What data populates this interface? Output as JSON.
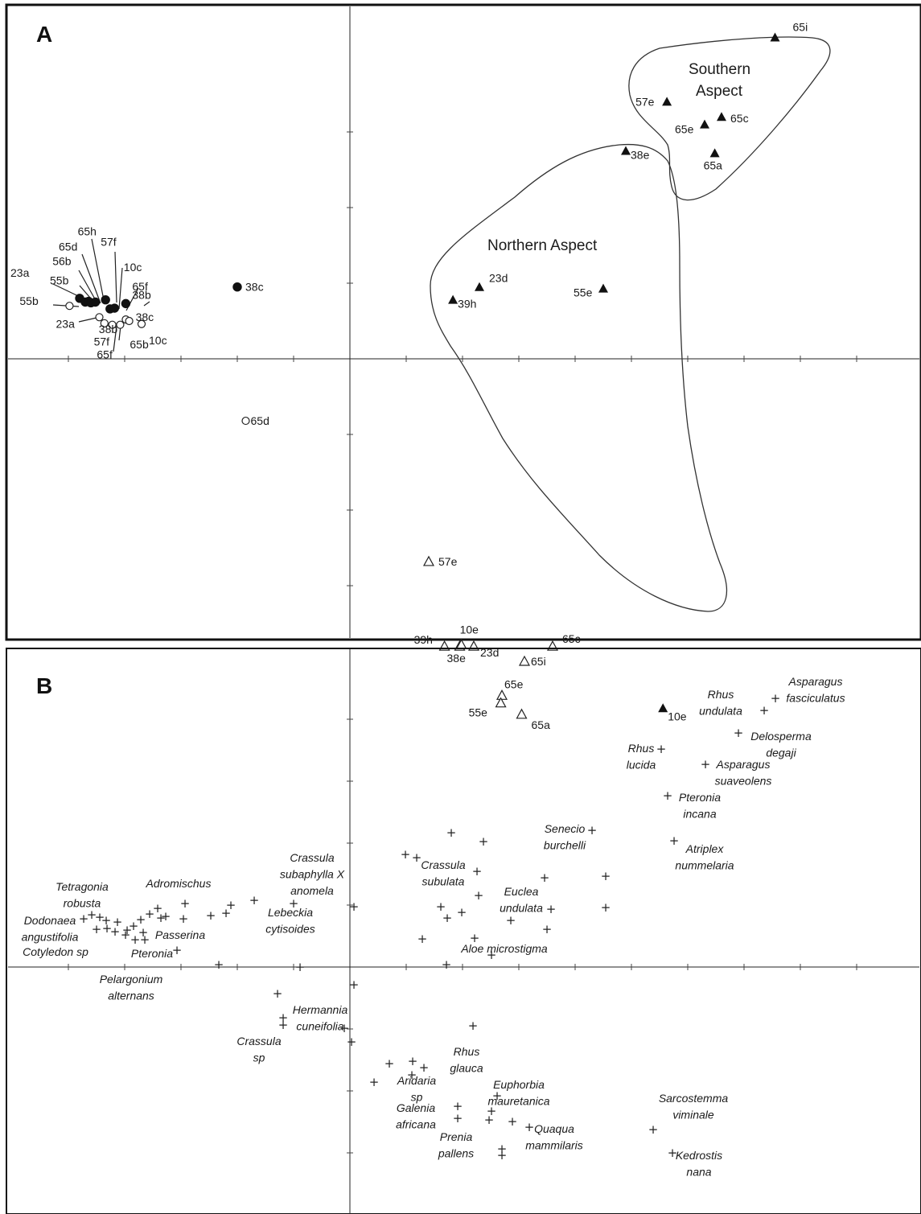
{
  "chart_data": [
    {
      "type": "scatter",
      "panel": "A",
      "axes": {
        "x_origin_line": true,
        "y_origin_line": true,
        "tick_labels": "none"
      },
      "groups": [
        {
          "name": "Northern Aspect"
        },
        {
          "name": "Southern Aspect"
        }
      ],
      "series": [
        {
          "marker": "filled-circle",
          "points": [
            {
              "label": "23a",
              "x": -4.8,
              "y": 0.8
            },
            {
              "label": "55b",
              "x": -4.7,
              "y": 0.75
            },
            {
              "label": "56b",
              "x": -4.64,
              "y": 0.76
            },
            {
              "label": "65d",
              "x": -4.6,
              "y": 0.74
            },
            {
              "label": "65h",
              "x": -4.52,
              "y": 0.75
            },
            {
              "label": "57f",
              "x": -4.34,
              "y": 0.78
            },
            {
              "label": "10c",
              "x": -4.26,
              "y": 0.66
            },
            {
              "label": "65f",
              "x": -4.18,
              "y": 0.67
            },
            {
              "label": "38b",
              "x": -3.98,
              "y": 0.73
            },
            {
              "label": "38c",
              "x": -2.0,
              "y": 0.95
            }
          ]
        },
        {
          "marker": "open-circle",
          "points": [
            {
              "label": "55b",
              "x": -4.98,
              "y": 0.7
            },
            {
              "label": "23a",
              "x": -4.45,
              "y": 0.55
            },
            {
              "label": "38b",
              "x": -4.36,
              "y": 0.47
            },
            {
              "label": "57f",
              "x": -4.22,
              "y": 0.45
            },
            {
              "label": "65f",
              "x": -4.08,
              "y": 0.45
            },
            {
              "label": "65b",
              "x": -3.98,
              "y": 0.52
            },
            {
              "label": "38c",
              "x": -3.92,
              "y": 0.5
            },
            {
              "label": "10c",
              "x": -3.7,
              "y": 0.46
            },
            {
              "label": "65d",
              "x": -1.85,
              "y": -0.82
            }
          ]
        },
        {
          "marker": "filled-triangle",
          "points": [
            {
              "label": "65i",
              "x": 7.55,
              "y": 4.25
            },
            {
              "label": "57e",
              "x": 5.63,
              "y": 3.4
            },
            {
              "label": "65e",
              "x": 6.3,
              "y": 3.1
            },
            {
              "label": "65c",
              "x": 6.6,
              "y": 3.2
            },
            {
              "label": "65a",
              "x": 6.48,
              "y": 2.72
            },
            {
              "label": "38e",
              "x": 4.9,
              "y": 2.75
            },
            {
              "label": "23d",
              "x": 2.3,
              "y": 0.95
            },
            {
              "label": "39h",
              "x": 1.83,
              "y": 0.78
            },
            {
              "label": "55e",
              "x": 4.5,
              "y": 0.93
            },
            {
              "label": "10e",
              "x": 5.56,
              "y": -4.62
            }
          ]
        },
        {
          "marker": "open-triangle",
          "points": [
            {
              "label": "57e",
              "x": 1.4,
              "y": -2.68
            },
            {
              "label": "39h",
              "x": 1.68,
              "y": -3.8
            },
            {
              "label": "38e",
              "x": 1.95,
              "y": -3.8
            },
            {
              "label": "10e",
              "x": 1.98,
              "y": -3.78
            },
            {
              "label": "23d",
              "x": 2.2,
              "y": -3.8
            },
            {
              "label": "65i",
              "x": 3.1,
              "y": -4.0
            },
            {
              "label": "65c",
              "x": 3.6,
              "y": -3.8
            },
            {
              "label": "65e",
              "x": 2.7,
              "y": -4.45
            },
            {
              "label": "55e",
              "x": 2.68,
              "y": -4.55
            },
            {
              "label": "65a",
              "x": 3.05,
              "y": -4.7
            }
          ]
        }
      ]
    },
    {
      "type": "scatter",
      "panel": "B",
      "axes": {
        "x_origin_line": true,
        "y_origin_line": true,
        "tick_labels": "none"
      },
      "marker": "cross",
      "labels": [
        {
          "lines": [
            "Asparagus",
            "fasciculatus"
          ]
        },
        {
          "lines": [
            "Rhus",
            "undulata"
          ]
        },
        {
          "lines": [
            "Delosperma",
            "degaji"
          ]
        },
        {
          "lines": [
            "Rhus",
            "lucida"
          ]
        },
        {
          "lines": [
            "Asparagus",
            "suaveolens"
          ]
        },
        {
          "lines": [
            "Pteronia",
            "incana"
          ]
        },
        {
          "lines": [
            "Senecio",
            "burchelli"
          ]
        },
        {
          "lines": [
            "Atriplex",
            "nummelaria"
          ]
        },
        {
          "lines": [
            "Crassula",
            "subaphylla X",
            "anomela"
          ]
        },
        {
          "lines": [
            "Crassula",
            "subulata"
          ]
        },
        {
          "lines": [
            "Tetragonia",
            "robusta"
          ]
        },
        {
          "lines": [
            "Adromischus"
          ]
        },
        {
          "lines": [
            "Euclea",
            "undulata"
          ]
        },
        {
          "lines": [
            "Lebeckia",
            "cytisoides"
          ]
        },
        {
          "lines": [
            "Dodonaea",
            "angustifolia"
          ]
        },
        {
          "lines": [
            "Passerina"
          ]
        },
        {
          "lines": [
            "Cotyledon sp"
          ]
        },
        {
          "lines": [
            "Pteronia"
          ]
        },
        {
          "lines": [
            "Aloe microstigma"
          ]
        },
        {
          "lines": [
            "Pelargonium",
            "alternans"
          ]
        },
        {
          "lines": [
            "Hermannia",
            "cuneifolia"
          ]
        },
        {
          "lines": [
            "Crassula",
            "sp"
          ]
        },
        {
          "lines": [
            "Rhus",
            "glauca"
          ]
        },
        {
          "lines": [
            "Aridaria",
            "sp"
          ]
        },
        {
          "lines": [
            "Euphorbia",
            "mauretanica"
          ]
        },
        {
          "lines": [
            "Galenia",
            "africana"
          ]
        },
        {
          "lines": [
            "Quaqua",
            "mammilaris"
          ]
        },
        {
          "lines": [
            "Prenia",
            "pallens"
          ]
        },
        {
          "lines": [
            "Sarcostemma",
            "viminale"
          ]
        },
        {
          "lines": [
            "Kedrostis",
            "nana"
          ]
        }
      ]
    }
  ],
  "panel_a": {
    "letter": "A",
    "group_north": "Northern Aspect",
    "group_south_1": "Southern",
    "group_south_2": "Aspect"
  },
  "panel_b": {
    "letter": "B"
  },
  "colors": {
    "marker": "#111111",
    "background": "#ffffff",
    "frame": "#111111"
  }
}
